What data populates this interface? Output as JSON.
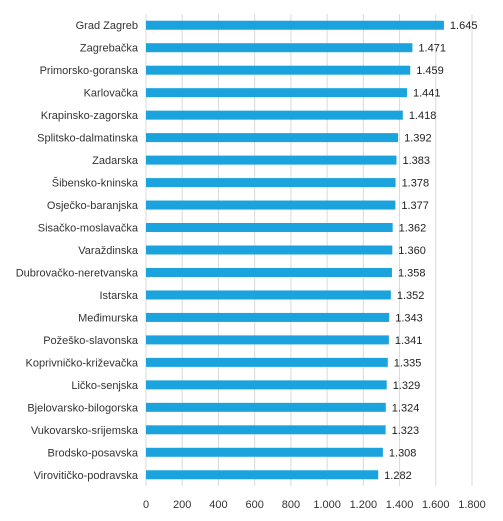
{
  "chart_data": {
    "type": "bar",
    "orientation": "horizontal",
    "categories": [
      "Grad Zagreb",
      "Zagrebačka",
      "Primorsko-goranska",
      "Karlovačka",
      "Krapinsko-zagorska",
      "Splitsko-dalmatinska",
      "Zadarska",
      "Šibensko-kninska",
      "Osječko-baranjska",
      "Sisačko-moslavačka",
      "Varaždinska",
      "Dubrovačko-neretvanska",
      "Istarska",
      "Međimurska",
      "Požeško-slavonska",
      "Koprivničko-križevačka",
      "Ličko-senjska",
      "Bjelovarsko-bilogorska",
      "Vukovarsko-srijemska",
      "Brodsko-posavska",
      "Virovitičko-podravska"
    ],
    "values": [
      1645,
      1471,
      1459,
      1441,
      1418,
      1392,
      1383,
      1378,
      1377,
      1362,
      1360,
      1358,
      1352,
      1343,
      1341,
      1335,
      1329,
      1324,
      1323,
      1308,
      1282
    ],
    "value_labels": [
      "1.645",
      "1.471",
      "1.459",
      "1.441",
      "1.418",
      "1.392",
      "1.383",
      "1.378",
      "1.377",
      "1.362",
      "1.360",
      "1.358",
      "1.352",
      "1.343",
      "1.341",
      "1.335",
      "1.329",
      "1.324",
      "1.323",
      "1.308",
      "1.282"
    ],
    "xlim": [
      0,
      1800
    ],
    "x_ticks": [
      0,
      200,
      400,
      600,
      800,
      1000,
      1200,
      1400,
      1600,
      1800
    ],
    "x_tick_labels": [
      "0",
      "200",
      "400",
      "600",
      "800",
      "1.000",
      "1.200",
      "1.400",
      "1.600",
      "1.800"
    ],
    "title": "",
    "xlabel": "",
    "ylabel": "",
    "grid": "vertical",
    "legend": "none",
    "bar_color": "#1aa3dc"
  }
}
